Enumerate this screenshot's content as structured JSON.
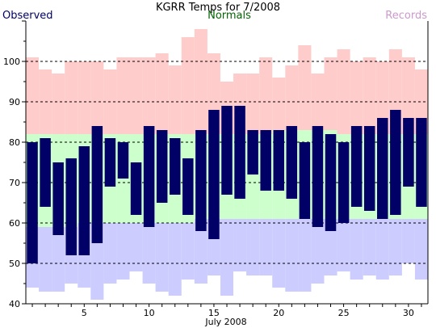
{
  "chart_data": {
    "type": "bar",
    "title": "KGRR Temps for 7/2008",
    "xlabel": "July 2008",
    "legend": [
      {
        "name": "Observed",
        "color": "#000066",
        "placement": "top-left"
      },
      {
        "name": "Normals",
        "color": "#006600",
        "placement": "top-center"
      },
      {
        "name": "Records",
        "color": "#cc99cc",
        "placement": "top-right"
      }
    ],
    "colors": {
      "observed": "#000066",
      "normals": "#ccffcc",
      "record_high": "#ffcccc",
      "record_low": "#ccccff",
      "grid": "#000000"
    },
    "grid": true,
    "gridlines_y": [
      50,
      60,
      70,
      80,
      90,
      100
    ],
    "ylim": [
      40,
      110
    ],
    "xlim": [
      0.5,
      31.5
    ],
    "x_ticks": [
      5,
      10,
      15,
      20,
      25,
      30
    ],
    "y_ticks": [
      40,
      50,
      60,
      70,
      80,
      90,
      100
    ],
    "days": [
      1,
      2,
      3,
      4,
      5,
      6,
      7,
      8,
      9,
      10,
      11,
      12,
      13,
      14,
      15,
      16,
      17,
      18,
      19,
      20,
      21,
      22,
      23,
      24,
      25,
      26,
      27,
      28,
      29,
      30,
      31
    ],
    "record_high": [
      101,
      98,
      97,
      100,
      100,
      100,
      98,
      101,
      101,
      101,
      102,
      99,
      106,
      108,
      102,
      95,
      97,
      97,
      101,
      96,
      99,
      104,
      97,
      101,
      103,
      100,
      101,
      100,
      103,
      101,
      98
    ],
    "record_low": [
      44,
      43,
      43,
      45,
      44,
      41,
      45,
      46,
      48,
      45,
      43,
      42,
      46,
      45,
      47,
      42,
      48,
      47,
      47,
      44,
      43,
      43,
      45,
      47,
      48,
      46,
      47,
      46,
      47,
      50,
      46
    ],
    "normal_high": [
      82,
      82,
      82,
      82,
      82,
      82,
      82,
      82,
      82,
      82,
      82,
      82,
      82,
      82,
      82,
      82,
      82,
      82,
      82,
      83,
      83,
      83,
      83,
      83,
      82,
      82,
      82,
      82,
      82,
      82,
      82
    ],
    "normal_low": [
      59,
      59,
      59,
      59,
      60,
      60,
      60,
      60,
      60,
      60,
      60,
      60,
      60,
      61,
      61,
      61,
      61,
      61,
      61,
      61,
      61,
      61,
      61,
      61,
      61,
      61,
      61,
      61,
      61,
      61,
      61
    ],
    "observed_high": [
      80,
      81,
      75,
      76,
      79,
      84,
      81,
      80,
      75,
      84,
      83,
      81,
      76,
      83,
      88,
      89,
      89,
      83,
      83,
      83,
      84,
      80,
      84,
      82,
      80,
      84,
      84,
      86,
      88,
      86,
      86
    ],
    "observed_low": [
      50,
      64,
      57,
      52,
      52,
      55,
      69,
      71,
      62,
      59,
      65,
      67,
      62,
      58,
      56,
      67,
      66,
      72,
      68,
      68,
      66,
      61,
      59,
      58,
      60,
      64,
      63,
      61,
      62,
      69,
      64
    ]
  }
}
